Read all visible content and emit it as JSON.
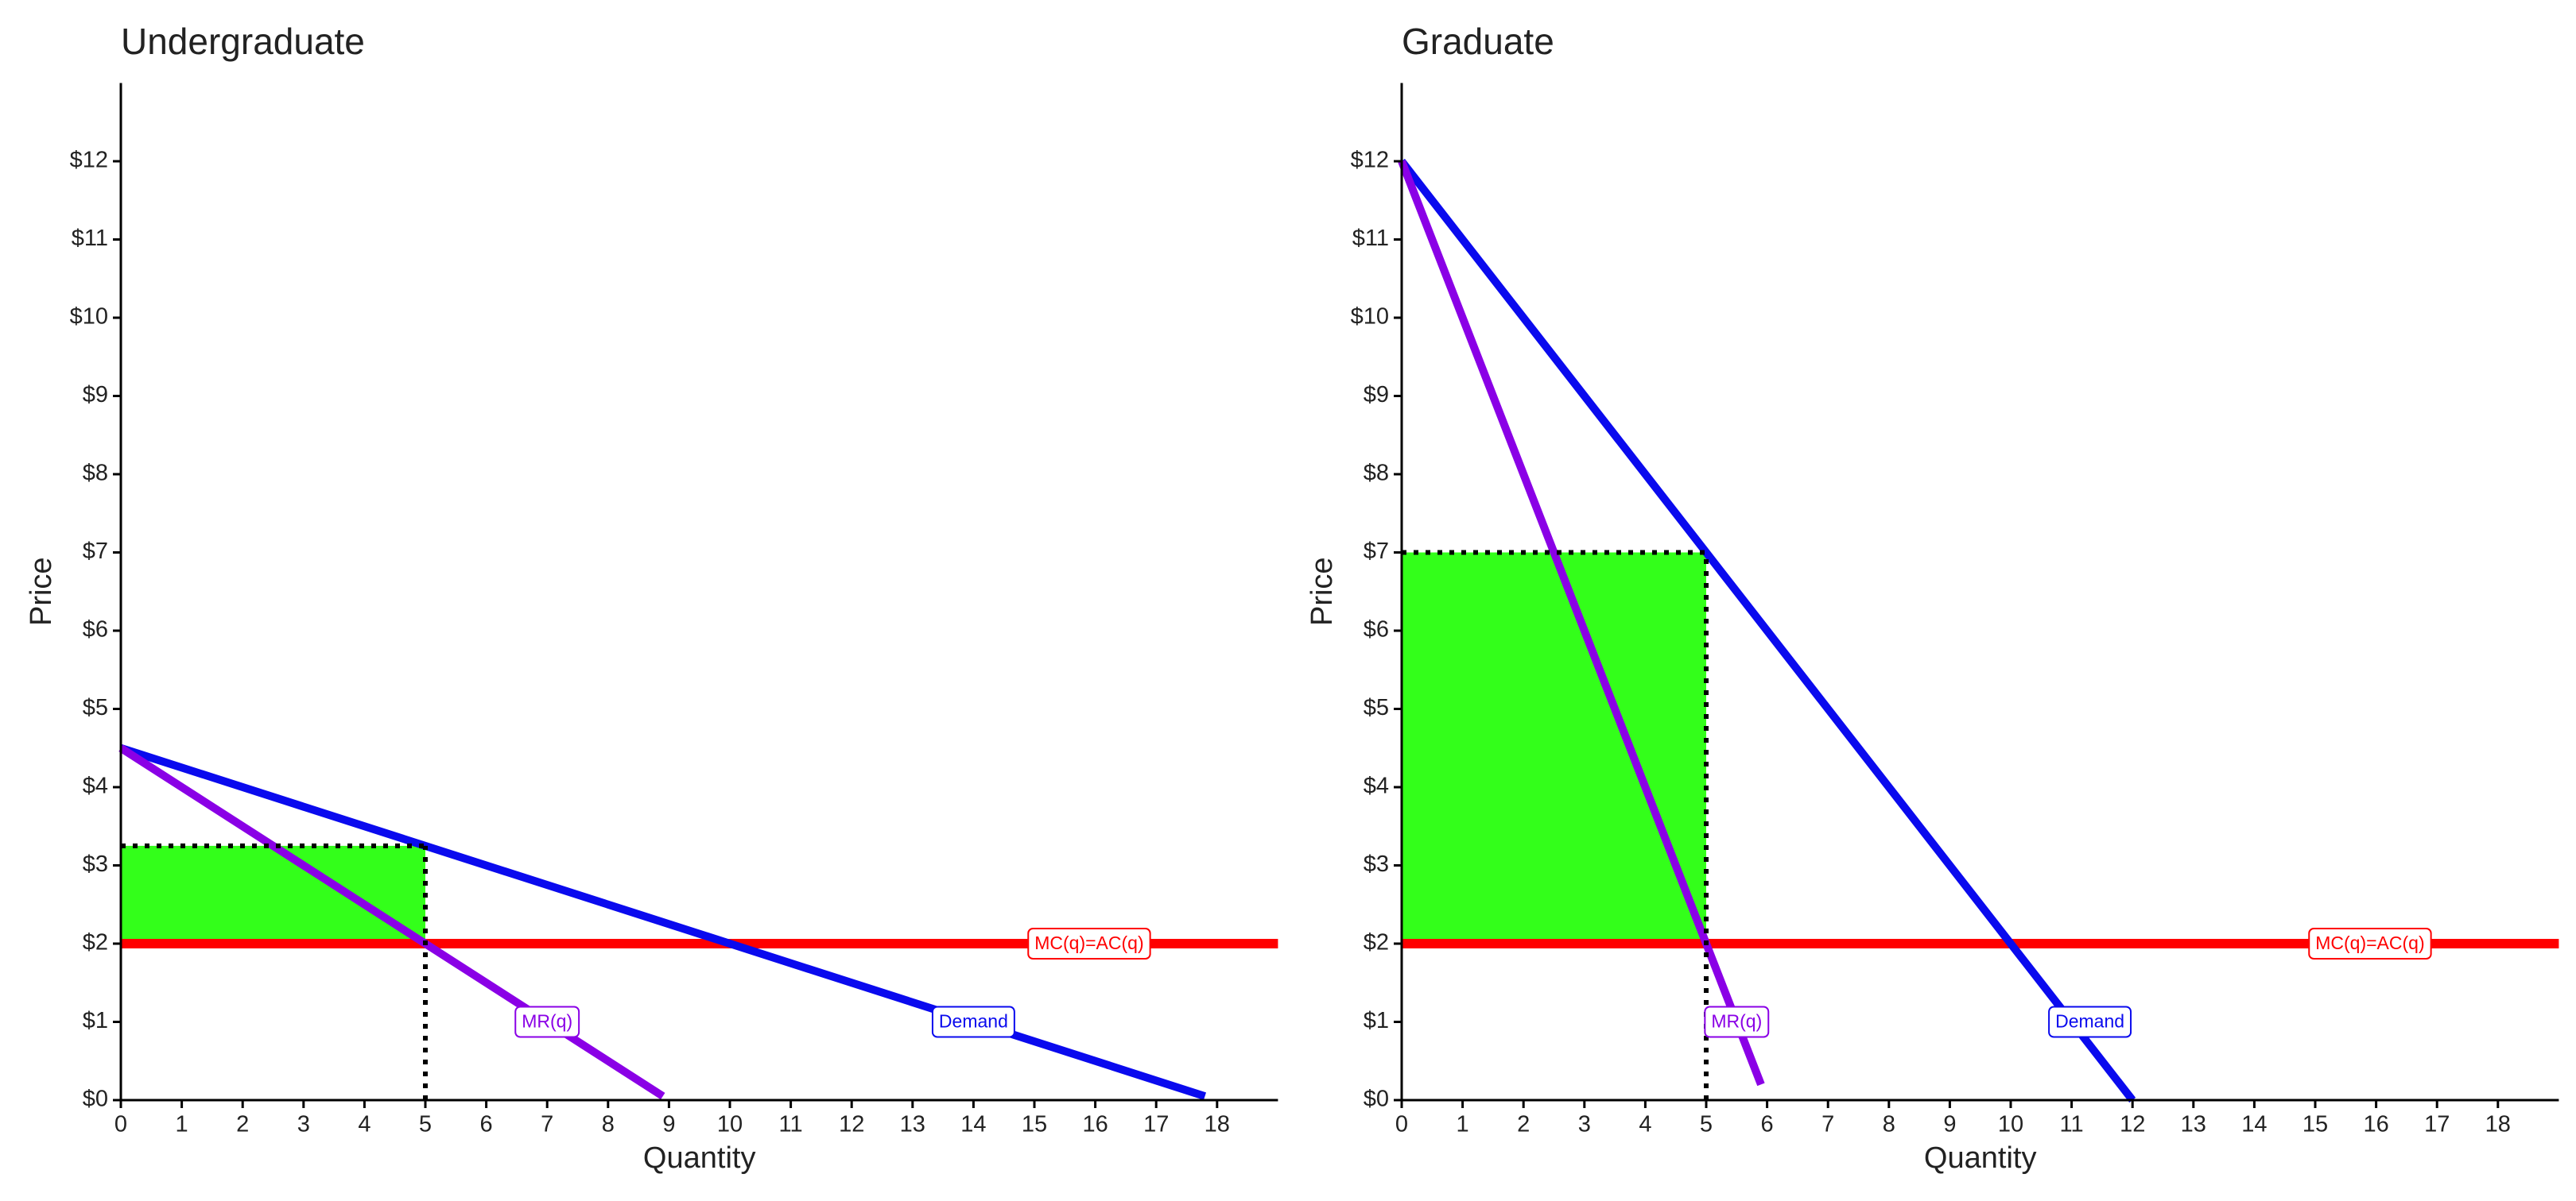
{
  "chart_data": [
    {
      "type": "line",
      "title": "Undergraduate",
      "x_label": "Quantity",
      "y_label": "Price",
      "xlim": [
        0,
        19
      ],
      "ylim": [
        0,
        13
      ],
      "xticks": [
        0,
        1,
        2,
        3,
        4,
        5,
        6,
        7,
        8,
        9,
        10,
        11,
        12,
        13,
        14,
        15,
        16,
        17,
        18
      ],
      "yticks": [
        {
          "value": 0,
          "label": "$0"
        },
        {
          "value": 1,
          "label": "$1"
        },
        {
          "value": 2,
          "label": "$2"
        },
        {
          "value": 3,
          "label": "$3"
        },
        {
          "value": 4,
          "label": "$4"
        },
        {
          "value": 5,
          "label": "$5"
        },
        {
          "value": 6,
          "label": "$6"
        },
        {
          "value": 7,
          "label": "$7"
        },
        {
          "value": 8,
          "label": "$8"
        },
        {
          "value": 9,
          "label": "$9"
        },
        {
          "value": 10,
          "label": "$10"
        },
        {
          "value": 11,
          "label": "$11"
        },
        {
          "value": 12,
          "label": "$12"
        }
      ],
      "profit_area": {
        "x": [
          0,
          5
        ],
        "y": [
          2,
          3.25
        ],
        "color": "#33ff1a"
      },
      "series": [
        {
          "name": "MC(q)=AC(q)",
          "color": "#ff0000",
          "x": [
            0,
            19
          ],
          "values": [
            2,
            2
          ],
          "label_x": 15.9,
          "label_y": 2
        },
        {
          "name": "Demand",
          "color": "#0a0aee",
          "x": [
            0,
            17.8
          ],
          "values": [
            4.5,
            0.05
          ],
          "label_x": 14,
          "label_y": 1
        },
        {
          "name": "MR(q)",
          "color": "#8a00e6",
          "x": [
            0,
            8.9
          ],
          "values": [
            4.5,
            0.05
          ],
          "label_x": 7,
          "label_y": 1
        }
      ]
    },
    {
      "type": "line",
      "title": "Graduate",
      "x_label": "Quantity",
      "y_label": "Price",
      "xlim": [
        0,
        19
      ],
      "ylim": [
        0,
        13
      ],
      "xticks": [
        0,
        1,
        2,
        3,
        4,
        5,
        6,
        7,
        8,
        9,
        10,
        11,
        12,
        13,
        14,
        15,
        16,
        17,
        18
      ],
      "yticks": [
        {
          "value": 0,
          "label": "$0"
        },
        {
          "value": 1,
          "label": "$1"
        },
        {
          "value": 2,
          "label": "$2"
        },
        {
          "value": 3,
          "label": "$3"
        },
        {
          "value": 4,
          "label": "$4"
        },
        {
          "value": 5,
          "label": "$5"
        },
        {
          "value": 6,
          "label": "$6"
        },
        {
          "value": 7,
          "label": "$7"
        },
        {
          "value": 8,
          "label": "$8"
        },
        {
          "value": 9,
          "label": "$9"
        },
        {
          "value": 10,
          "label": "$10"
        },
        {
          "value": 11,
          "label": "$11"
        },
        {
          "value": 12,
          "label": "$12"
        }
      ],
      "profit_area": {
        "x": [
          0,
          5
        ],
        "y": [
          2,
          7
        ],
        "color": "#33ff1a"
      },
      "series": [
        {
          "name": "MC(q)=AC(q)",
          "color": "#ff0000",
          "x": [
            0,
            19
          ],
          "values": [
            2,
            2
          ],
          "label_x": 15.9,
          "label_y": 2
        },
        {
          "name": "Demand",
          "color": "#0a0aee",
          "x": [
            0,
            12
          ],
          "values": [
            12,
            0
          ],
          "label_x": 11.3,
          "label_y": 1
        },
        {
          "name": "MR(q)",
          "color": "#8a00e6",
          "x": [
            0,
            5.9
          ],
          "values": [
            12,
            0.2
          ],
          "label_x": 5.5,
          "label_y": 1
        }
      ]
    }
  ]
}
